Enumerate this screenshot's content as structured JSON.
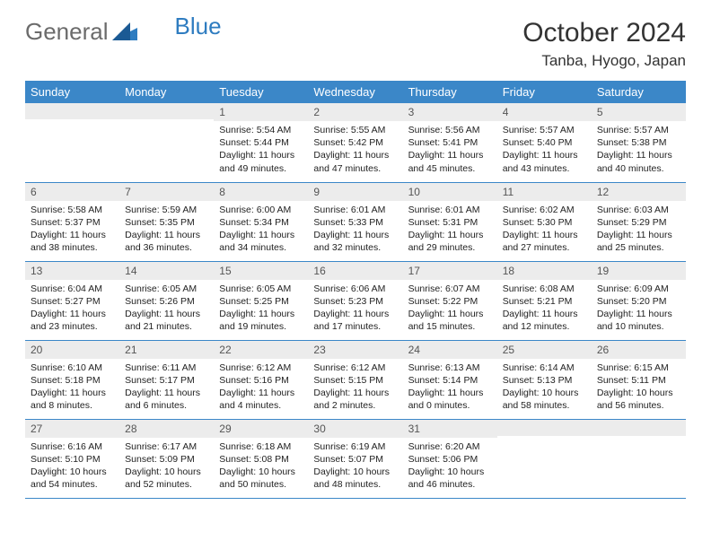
{
  "brand": {
    "part1": "General",
    "part2": "Blue"
  },
  "title": "October 2024",
  "location": "Tanba, Hyogo, Japan",
  "colors": {
    "header_bg": "#3b87c8",
    "header_text": "#ffffff",
    "daynum_bg": "#ececec",
    "daynum_text": "#555555",
    "cell_border": "#3b87c8",
    "body_text": "#222222",
    "logo_gray": "#6b6b6b",
    "logo_blue": "#2e7cc0",
    "background": "#ffffff"
  },
  "typography": {
    "month_title_fontsize": 30,
    "location_fontsize": 17,
    "dayheader_fontsize": 13,
    "daynum_fontsize": 12,
    "cell_fontsize": 10.5
  },
  "layout": {
    "columns": 7,
    "rows": 5,
    "first_weekday": "Sunday"
  },
  "day_headers": [
    "Sunday",
    "Monday",
    "Tuesday",
    "Wednesday",
    "Thursday",
    "Friday",
    "Saturday"
  ],
  "weeks": [
    [
      {
        "day": "",
        "sunrise": "",
        "sunset": "",
        "daylight": ""
      },
      {
        "day": "",
        "sunrise": "",
        "sunset": "",
        "daylight": ""
      },
      {
        "day": "1",
        "sunrise": "Sunrise: 5:54 AM",
        "sunset": "Sunset: 5:44 PM",
        "daylight": "Daylight: 11 hours and 49 minutes."
      },
      {
        "day": "2",
        "sunrise": "Sunrise: 5:55 AM",
        "sunset": "Sunset: 5:42 PM",
        "daylight": "Daylight: 11 hours and 47 minutes."
      },
      {
        "day": "3",
        "sunrise": "Sunrise: 5:56 AM",
        "sunset": "Sunset: 5:41 PM",
        "daylight": "Daylight: 11 hours and 45 minutes."
      },
      {
        "day": "4",
        "sunrise": "Sunrise: 5:57 AM",
        "sunset": "Sunset: 5:40 PM",
        "daylight": "Daylight: 11 hours and 43 minutes."
      },
      {
        "day": "5",
        "sunrise": "Sunrise: 5:57 AM",
        "sunset": "Sunset: 5:38 PM",
        "daylight": "Daylight: 11 hours and 40 minutes."
      }
    ],
    [
      {
        "day": "6",
        "sunrise": "Sunrise: 5:58 AM",
        "sunset": "Sunset: 5:37 PM",
        "daylight": "Daylight: 11 hours and 38 minutes."
      },
      {
        "day": "7",
        "sunrise": "Sunrise: 5:59 AM",
        "sunset": "Sunset: 5:35 PM",
        "daylight": "Daylight: 11 hours and 36 minutes."
      },
      {
        "day": "8",
        "sunrise": "Sunrise: 6:00 AM",
        "sunset": "Sunset: 5:34 PM",
        "daylight": "Daylight: 11 hours and 34 minutes."
      },
      {
        "day": "9",
        "sunrise": "Sunrise: 6:01 AM",
        "sunset": "Sunset: 5:33 PM",
        "daylight": "Daylight: 11 hours and 32 minutes."
      },
      {
        "day": "10",
        "sunrise": "Sunrise: 6:01 AM",
        "sunset": "Sunset: 5:31 PM",
        "daylight": "Daylight: 11 hours and 29 minutes."
      },
      {
        "day": "11",
        "sunrise": "Sunrise: 6:02 AM",
        "sunset": "Sunset: 5:30 PM",
        "daylight": "Daylight: 11 hours and 27 minutes."
      },
      {
        "day": "12",
        "sunrise": "Sunrise: 6:03 AM",
        "sunset": "Sunset: 5:29 PM",
        "daylight": "Daylight: 11 hours and 25 minutes."
      }
    ],
    [
      {
        "day": "13",
        "sunrise": "Sunrise: 6:04 AM",
        "sunset": "Sunset: 5:27 PM",
        "daylight": "Daylight: 11 hours and 23 minutes."
      },
      {
        "day": "14",
        "sunrise": "Sunrise: 6:05 AM",
        "sunset": "Sunset: 5:26 PM",
        "daylight": "Daylight: 11 hours and 21 minutes."
      },
      {
        "day": "15",
        "sunrise": "Sunrise: 6:05 AM",
        "sunset": "Sunset: 5:25 PM",
        "daylight": "Daylight: 11 hours and 19 minutes."
      },
      {
        "day": "16",
        "sunrise": "Sunrise: 6:06 AM",
        "sunset": "Sunset: 5:23 PM",
        "daylight": "Daylight: 11 hours and 17 minutes."
      },
      {
        "day": "17",
        "sunrise": "Sunrise: 6:07 AM",
        "sunset": "Sunset: 5:22 PM",
        "daylight": "Daylight: 11 hours and 15 minutes."
      },
      {
        "day": "18",
        "sunrise": "Sunrise: 6:08 AM",
        "sunset": "Sunset: 5:21 PM",
        "daylight": "Daylight: 11 hours and 12 minutes."
      },
      {
        "day": "19",
        "sunrise": "Sunrise: 6:09 AM",
        "sunset": "Sunset: 5:20 PM",
        "daylight": "Daylight: 11 hours and 10 minutes."
      }
    ],
    [
      {
        "day": "20",
        "sunrise": "Sunrise: 6:10 AM",
        "sunset": "Sunset: 5:18 PM",
        "daylight": "Daylight: 11 hours and 8 minutes."
      },
      {
        "day": "21",
        "sunrise": "Sunrise: 6:11 AM",
        "sunset": "Sunset: 5:17 PM",
        "daylight": "Daylight: 11 hours and 6 minutes."
      },
      {
        "day": "22",
        "sunrise": "Sunrise: 6:12 AM",
        "sunset": "Sunset: 5:16 PM",
        "daylight": "Daylight: 11 hours and 4 minutes."
      },
      {
        "day": "23",
        "sunrise": "Sunrise: 6:12 AM",
        "sunset": "Sunset: 5:15 PM",
        "daylight": "Daylight: 11 hours and 2 minutes."
      },
      {
        "day": "24",
        "sunrise": "Sunrise: 6:13 AM",
        "sunset": "Sunset: 5:14 PM",
        "daylight": "Daylight: 11 hours and 0 minutes."
      },
      {
        "day": "25",
        "sunrise": "Sunrise: 6:14 AM",
        "sunset": "Sunset: 5:13 PM",
        "daylight": "Daylight: 10 hours and 58 minutes."
      },
      {
        "day": "26",
        "sunrise": "Sunrise: 6:15 AM",
        "sunset": "Sunset: 5:11 PM",
        "daylight": "Daylight: 10 hours and 56 minutes."
      }
    ],
    [
      {
        "day": "27",
        "sunrise": "Sunrise: 6:16 AM",
        "sunset": "Sunset: 5:10 PM",
        "daylight": "Daylight: 10 hours and 54 minutes."
      },
      {
        "day": "28",
        "sunrise": "Sunrise: 6:17 AM",
        "sunset": "Sunset: 5:09 PM",
        "daylight": "Daylight: 10 hours and 52 minutes."
      },
      {
        "day": "29",
        "sunrise": "Sunrise: 6:18 AM",
        "sunset": "Sunset: 5:08 PM",
        "daylight": "Daylight: 10 hours and 50 minutes."
      },
      {
        "day": "30",
        "sunrise": "Sunrise: 6:19 AM",
        "sunset": "Sunset: 5:07 PM",
        "daylight": "Daylight: 10 hours and 48 minutes."
      },
      {
        "day": "31",
        "sunrise": "Sunrise: 6:20 AM",
        "sunset": "Sunset: 5:06 PM",
        "daylight": "Daylight: 10 hours and 46 minutes."
      },
      {
        "day": "",
        "sunrise": "",
        "sunset": "",
        "daylight": ""
      },
      {
        "day": "",
        "sunrise": "",
        "sunset": "",
        "daylight": ""
      }
    ]
  ]
}
